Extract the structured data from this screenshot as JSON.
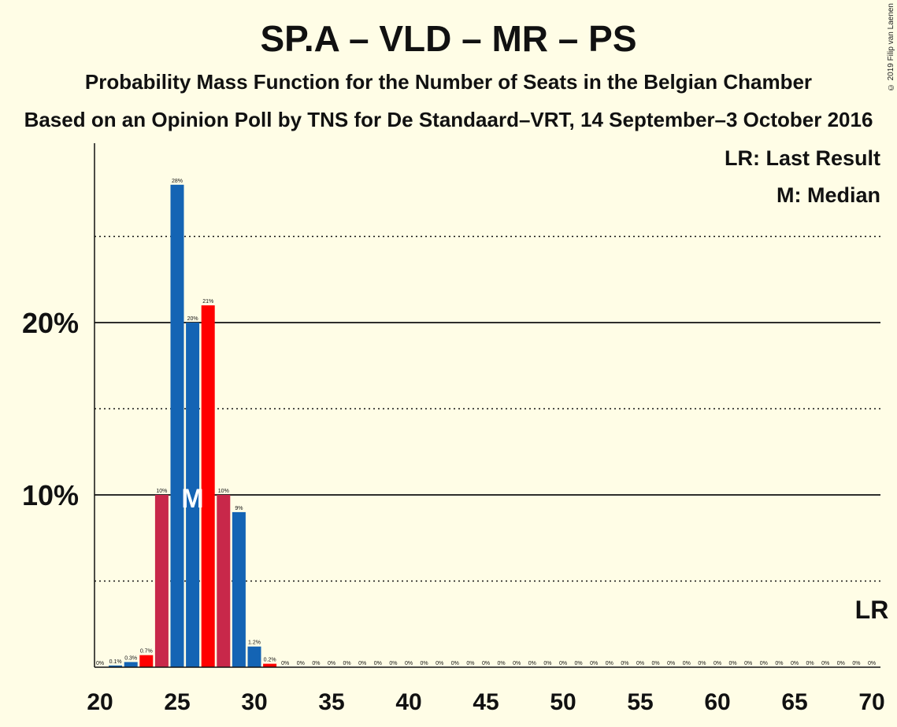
{
  "title": "SP.A – VLD – MR – PS",
  "subtitle": "Probability Mass Function for the Number of Seats in the Belgian Chamber",
  "source": "Based on an Opinion Poll by TNS for De Standaard–VRT, 14 September–3 October 2016",
  "copyright": "© 2019 Filip van Laenen",
  "legend": {
    "last_result": "LR: Last Result",
    "median": "M: Median"
  },
  "markers": {
    "median_label": "M",
    "median_seat": 26,
    "last_result_label": "LR",
    "last_result_seat": 70
  },
  "colors": {
    "background": "#FFFDE6",
    "blue": "#1464B4",
    "red": "#FF0000",
    "crimson": "#C8284A"
  },
  "chart_data": {
    "type": "bar",
    "x": [
      20,
      21,
      22,
      23,
      24,
      25,
      26,
      27,
      28,
      29,
      30,
      31,
      32,
      33,
      34,
      35,
      36,
      37,
      38,
      39,
      40,
      41,
      42,
      43,
      44,
      45,
      46,
      47,
      48,
      49,
      50,
      51,
      52,
      53,
      54,
      55,
      56,
      57,
      58,
      59,
      60,
      61,
      62,
      63,
      64,
      65,
      66,
      67,
      68,
      69,
      70
    ],
    "values": [
      0,
      0.1,
      0.3,
      0.7,
      10,
      28,
      20,
      21,
      10,
      9,
      1.2,
      0.2,
      0,
      0,
      0,
      0,
      0,
      0,
      0,
      0,
      0,
      0,
      0,
      0,
      0,
      0,
      0,
      0,
      0,
      0,
      0,
      0,
      0,
      0,
      0,
      0,
      0,
      0,
      0,
      0,
      0,
      0,
      0,
      0,
      0,
      0,
      0,
      0,
      0,
      0,
      0
    ],
    "data_labels": [
      "0%",
      "0.1%",
      "0.3%",
      "0.7%",
      "10%",
      "28%",
      "20%",
      "21%",
      "10%",
      "9%",
      "1.2%",
      "0.2%",
      "0%",
      "0%",
      "0%",
      "0%",
      "0%",
      "0%",
      "0%",
      "0%",
      "0%",
      "0%",
      "0%",
      "0%",
      "0%",
      "0%",
      "0%",
      "0%",
      "0%",
      "0%",
      "0%",
      "0%",
      "0%",
      "0%",
      "0%",
      "0%",
      "0%",
      "0%",
      "0%",
      "0%",
      "0%",
      "0%",
      "0%",
      "0%",
      "0%",
      "0%",
      "0%",
      "0%",
      "0%",
      "0%",
      "0%"
    ],
    "bar_colors": [
      "blue",
      "blue",
      "blue",
      "red",
      "crimson",
      "blue",
      "blue",
      "red",
      "crimson",
      "blue",
      "blue",
      "red",
      "blue",
      "blue",
      "blue",
      "blue",
      "blue",
      "blue",
      "blue",
      "blue",
      "blue",
      "blue",
      "blue",
      "blue",
      "blue",
      "blue",
      "blue",
      "blue",
      "blue",
      "blue",
      "blue",
      "blue",
      "blue",
      "blue",
      "blue",
      "blue",
      "blue",
      "blue",
      "blue",
      "blue",
      "blue",
      "blue",
      "blue",
      "blue",
      "blue",
      "blue",
      "blue",
      "blue",
      "blue",
      "blue",
      "blue"
    ],
    "xlim": [
      20,
      70
    ],
    "ylim": [
      0,
      30
    ],
    "xticks": [
      20,
      25,
      30,
      35,
      40,
      45,
      50,
      55,
      60,
      65,
      70
    ],
    "yticks_major": [
      {
        "value": 10,
        "label": "10%"
      },
      {
        "value": 20,
        "label": "20%"
      }
    ],
    "yticks_minor": [
      5,
      15,
      25
    ],
    "xlabel": "",
    "ylabel": ""
  }
}
